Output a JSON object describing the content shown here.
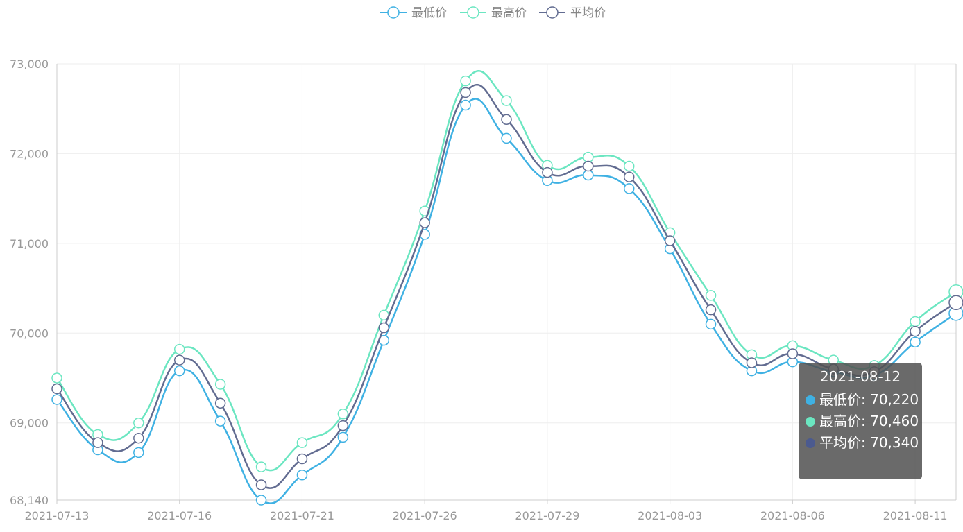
{
  "colors": {
    "low": "#3fb1e3",
    "high": "#6be6c1",
    "avg": "#626c91",
    "grid": "#eeeeee",
    "axis": "#cccccc",
    "label": "#999999"
  },
  "legend": [
    {
      "key": "low",
      "label": "最低价",
      "icon": "circle-icon"
    },
    {
      "key": "high",
      "label": "最高价",
      "icon": "circle-icon"
    },
    {
      "key": "avg",
      "label": "平均价",
      "icon": "circle-icon"
    }
  ],
  "tooltip": {
    "title": "2021-08-12",
    "rows": [
      {
        "key": "low",
        "text": "最低价: 70,220"
      },
      {
        "key": "high",
        "text": "最高价: 70,460"
      },
      {
        "key": "avg",
        "text": "平均价: 70,340"
      }
    ]
  },
  "chart_data": {
    "type": "line",
    "smooth": true,
    "x": [
      "2021-07-13",
      "2021-07-14",
      "2021-07-15",
      "2021-07-16",
      "2021-07-19",
      "2021-07-20",
      "2021-07-21",
      "2021-07-22",
      "2021-07-23",
      "2021-07-26",
      "2021-07-27",
      "2021-07-28",
      "2021-07-29",
      "2021-07-30",
      "2021-08-02",
      "2021-08-03",
      "2021-08-04",
      "2021-08-05",
      "2021-08-06",
      "2021-08-09",
      "2021-08-10",
      "2021-08-11",
      "2021-08-12"
    ],
    "x_tick_labels": [
      "2021-07-13",
      "2021-07-16",
      "2021-07-21",
      "2021-07-26",
      "2021-07-29",
      "2021-08-03",
      "2021-08-06",
      "2021-08-11"
    ],
    "y_tick_labels": [
      "68,140",
      "69,000",
      "70,000",
      "71,000",
      "72,000",
      "73,000"
    ],
    "ylim": [
      68140,
      73000
    ],
    "grid": true,
    "legend_position": "top-center",
    "series": [
      {
        "key": "low",
        "name": "最低价",
        "values": [
          69260,
          68700,
          68670,
          69580,
          69020,
          68140,
          68420,
          68840,
          69920,
          71100,
          72540,
          72170,
          71700,
          71760,
          71610,
          70940,
          70100,
          69580,
          69680,
          69570,
          69530,
          69900,
          70220
        ]
      },
      {
        "key": "high",
        "name": "最高价",
        "values": [
          69500,
          68870,
          69000,
          69820,
          69430,
          68510,
          68780,
          69100,
          70200,
          71360,
          72810,
          72590,
          71870,
          71960,
          71860,
          71120,
          70420,
          69760,
          69860,
          69700,
          69640,
          70130,
          70460
        ]
      },
      {
        "key": "avg",
        "name": "平均价",
        "values": [
          69380,
          68780,
          68830,
          69700,
          69220,
          68310,
          68600,
          68970,
          70060,
          71230,
          72680,
          72380,
          71790,
          71860,
          71740,
          71030,
          70260,
          69670,
          69770,
          69600,
          69570,
          70020,
          70340
        ]
      }
    ]
  }
}
